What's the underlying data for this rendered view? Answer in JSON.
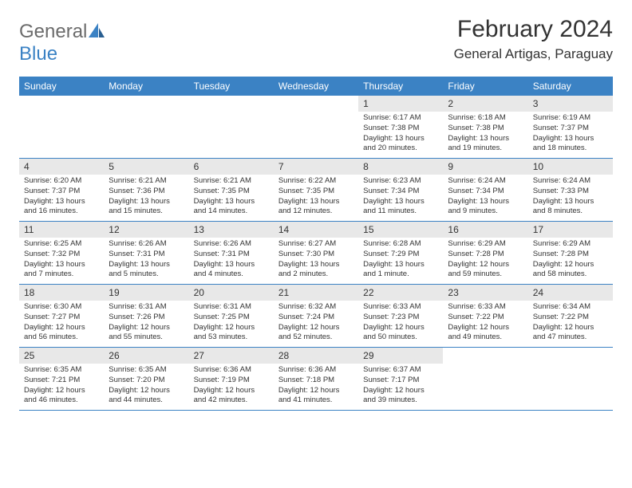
{
  "logo": {
    "part1": "General",
    "part2": "Blue"
  },
  "title": "February 2024",
  "location": "General Artigas, Paraguay",
  "day_headers": [
    "Sunday",
    "Monday",
    "Tuesday",
    "Wednesday",
    "Thursday",
    "Friday",
    "Saturday"
  ],
  "colors": {
    "header_bg": "#3b82c4",
    "daynum_bg": "#e8e8e8",
    "border": "#3b82c4",
    "logo_gray": "#6b6b6b",
    "logo_blue": "#3b82c4"
  },
  "weeks": [
    [
      {
        "day": "",
        "sunrise": "",
        "sunset": "",
        "daylight": ""
      },
      {
        "day": "",
        "sunrise": "",
        "sunset": "",
        "daylight": ""
      },
      {
        "day": "",
        "sunrise": "",
        "sunset": "",
        "daylight": ""
      },
      {
        "day": "",
        "sunrise": "",
        "sunset": "",
        "daylight": ""
      },
      {
        "day": "1",
        "sunrise": "Sunrise: 6:17 AM",
        "sunset": "Sunset: 7:38 PM",
        "daylight": "Daylight: 13 hours and 20 minutes."
      },
      {
        "day": "2",
        "sunrise": "Sunrise: 6:18 AM",
        "sunset": "Sunset: 7:38 PM",
        "daylight": "Daylight: 13 hours and 19 minutes."
      },
      {
        "day": "3",
        "sunrise": "Sunrise: 6:19 AM",
        "sunset": "Sunset: 7:37 PM",
        "daylight": "Daylight: 13 hours and 18 minutes."
      }
    ],
    [
      {
        "day": "4",
        "sunrise": "Sunrise: 6:20 AM",
        "sunset": "Sunset: 7:37 PM",
        "daylight": "Daylight: 13 hours and 16 minutes."
      },
      {
        "day": "5",
        "sunrise": "Sunrise: 6:21 AM",
        "sunset": "Sunset: 7:36 PM",
        "daylight": "Daylight: 13 hours and 15 minutes."
      },
      {
        "day": "6",
        "sunrise": "Sunrise: 6:21 AM",
        "sunset": "Sunset: 7:35 PM",
        "daylight": "Daylight: 13 hours and 14 minutes."
      },
      {
        "day": "7",
        "sunrise": "Sunrise: 6:22 AM",
        "sunset": "Sunset: 7:35 PM",
        "daylight": "Daylight: 13 hours and 12 minutes."
      },
      {
        "day": "8",
        "sunrise": "Sunrise: 6:23 AM",
        "sunset": "Sunset: 7:34 PM",
        "daylight": "Daylight: 13 hours and 11 minutes."
      },
      {
        "day": "9",
        "sunrise": "Sunrise: 6:24 AM",
        "sunset": "Sunset: 7:34 PM",
        "daylight": "Daylight: 13 hours and 9 minutes."
      },
      {
        "day": "10",
        "sunrise": "Sunrise: 6:24 AM",
        "sunset": "Sunset: 7:33 PM",
        "daylight": "Daylight: 13 hours and 8 minutes."
      }
    ],
    [
      {
        "day": "11",
        "sunrise": "Sunrise: 6:25 AM",
        "sunset": "Sunset: 7:32 PM",
        "daylight": "Daylight: 13 hours and 7 minutes."
      },
      {
        "day": "12",
        "sunrise": "Sunrise: 6:26 AM",
        "sunset": "Sunset: 7:31 PM",
        "daylight": "Daylight: 13 hours and 5 minutes."
      },
      {
        "day": "13",
        "sunrise": "Sunrise: 6:26 AM",
        "sunset": "Sunset: 7:31 PM",
        "daylight": "Daylight: 13 hours and 4 minutes."
      },
      {
        "day": "14",
        "sunrise": "Sunrise: 6:27 AM",
        "sunset": "Sunset: 7:30 PM",
        "daylight": "Daylight: 13 hours and 2 minutes."
      },
      {
        "day": "15",
        "sunrise": "Sunrise: 6:28 AM",
        "sunset": "Sunset: 7:29 PM",
        "daylight": "Daylight: 13 hours and 1 minute."
      },
      {
        "day": "16",
        "sunrise": "Sunrise: 6:29 AM",
        "sunset": "Sunset: 7:28 PM",
        "daylight": "Daylight: 12 hours and 59 minutes."
      },
      {
        "day": "17",
        "sunrise": "Sunrise: 6:29 AM",
        "sunset": "Sunset: 7:28 PM",
        "daylight": "Daylight: 12 hours and 58 minutes."
      }
    ],
    [
      {
        "day": "18",
        "sunrise": "Sunrise: 6:30 AM",
        "sunset": "Sunset: 7:27 PM",
        "daylight": "Daylight: 12 hours and 56 minutes."
      },
      {
        "day": "19",
        "sunrise": "Sunrise: 6:31 AM",
        "sunset": "Sunset: 7:26 PM",
        "daylight": "Daylight: 12 hours and 55 minutes."
      },
      {
        "day": "20",
        "sunrise": "Sunrise: 6:31 AM",
        "sunset": "Sunset: 7:25 PM",
        "daylight": "Daylight: 12 hours and 53 minutes."
      },
      {
        "day": "21",
        "sunrise": "Sunrise: 6:32 AM",
        "sunset": "Sunset: 7:24 PM",
        "daylight": "Daylight: 12 hours and 52 minutes."
      },
      {
        "day": "22",
        "sunrise": "Sunrise: 6:33 AM",
        "sunset": "Sunset: 7:23 PM",
        "daylight": "Daylight: 12 hours and 50 minutes."
      },
      {
        "day": "23",
        "sunrise": "Sunrise: 6:33 AM",
        "sunset": "Sunset: 7:22 PM",
        "daylight": "Daylight: 12 hours and 49 minutes."
      },
      {
        "day": "24",
        "sunrise": "Sunrise: 6:34 AM",
        "sunset": "Sunset: 7:22 PM",
        "daylight": "Daylight: 12 hours and 47 minutes."
      }
    ],
    [
      {
        "day": "25",
        "sunrise": "Sunrise: 6:35 AM",
        "sunset": "Sunset: 7:21 PM",
        "daylight": "Daylight: 12 hours and 46 minutes."
      },
      {
        "day": "26",
        "sunrise": "Sunrise: 6:35 AM",
        "sunset": "Sunset: 7:20 PM",
        "daylight": "Daylight: 12 hours and 44 minutes."
      },
      {
        "day": "27",
        "sunrise": "Sunrise: 6:36 AM",
        "sunset": "Sunset: 7:19 PM",
        "daylight": "Daylight: 12 hours and 42 minutes."
      },
      {
        "day": "28",
        "sunrise": "Sunrise: 6:36 AM",
        "sunset": "Sunset: 7:18 PM",
        "daylight": "Daylight: 12 hours and 41 minutes."
      },
      {
        "day": "29",
        "sunrise": "Sunrise: 6:37 AM",
        "sunset": "Sunset: 7:17 PM",
        "daylight": "Daylight: 12 hours and 39 minutes."
      },
      {
        "day": "",
        "sunrise": "",
        "sunset": "",
        "daylight": ""
      },
      {
        "day": "",
        "sunrise": "",
        "sunset": "",
        "daylight": ""
      }
    ]
  ]
}
